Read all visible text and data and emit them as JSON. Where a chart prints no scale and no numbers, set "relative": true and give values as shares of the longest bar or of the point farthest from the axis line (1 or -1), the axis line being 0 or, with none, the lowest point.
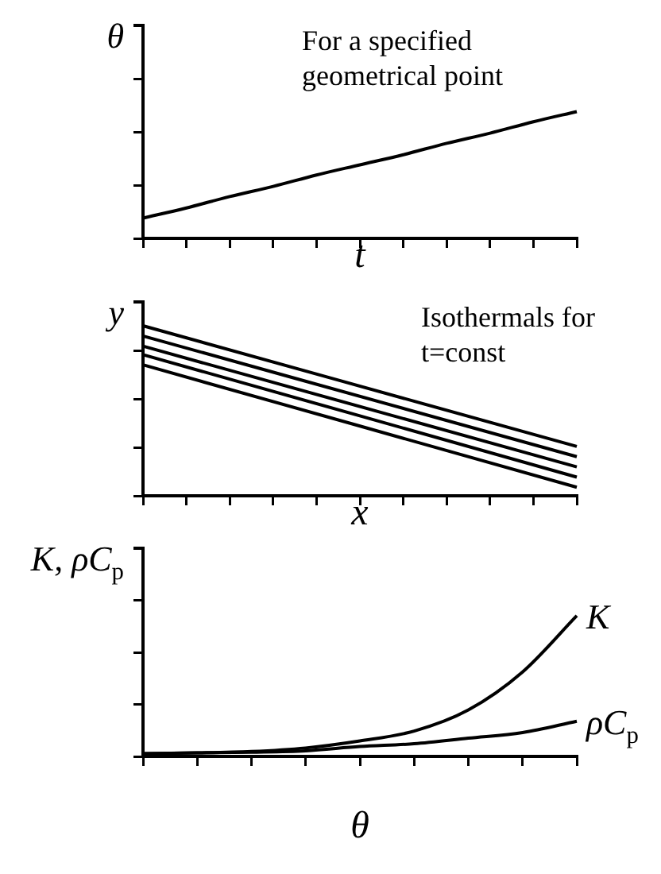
{
  "chart_data": [
    {
      "type": "line",
      "relative": true,
      "xlabel": "t",
      "ylabel": "θ",
      "annotations": [
        "For a specified geometrical point"
      ],
      "categories": [
        null,
        null,
        null,
        null,
        null,
        null,
        null,
        null,
        null,
        null,
        null
      ],
      "series": [
        {
          "color": "#000000",
          "values": [
            0.16,
            0.24,
            0.33,
            0.41,
            0.5,
            0.58,
            0.66,
            0.75,
            0.83,
            0.92,
            1.0
          ]
        }
      ],
      "marker": "none",
      "legend": false,
      "grid": false,
      "tick_labels": false
    },
    {
      "type": "line",
      "relative": true,
      "xlabel": "x",
      "ylabel": "y",
      "annotations": [
        "Isothermals for t=const"
      ],
      "categories": [
        null,
        null,
        null,
        null,
        null,
        null,
        null,
        null,
        null,
        null,
        null
      ],
      "series": [
        {
          "color": "#000000",
          "values": [
            1.0,
            null,
            null,
            null,
            null,
            null,
            null,
            null,
            null,
            null,
            0.29
          ]
        },
        {
          "color": "#000000",
          "values": [
            0.94,
            null,
            null,
            null,
            null,
            null,
            null,
            null,
            null,
            null,
            0.23
          ]
        },
        {
          "color": "#000000",
          "values": [
            0.88,
            null,
            null,
            null,
            null,
            null,
            null,
            null,
            null,
            null,
            0.17
          ]
        },
        {
          "color": "#000000",
          "values": [
            0.83,
            null,
            null,
            null,
            null,
            null,
            null,
            null,
            null,
            null,
            0.11
          ]
        },
        {
          "color": "#000000",
          "values": [
            0.77,
            null,
            null,
            null,
            null,
            null,
            null,
            null,
            null,
            null,
            0.05
          ]
        }
      ],
      "marker": "none",
      "legend": false,
      "grid": false,
      "tick_labels": false
    },
    {
      "type": "line",
      "relative": true,
      "xlabel": "θ",
      "ylabel": "K, ρC$_{p}$",
      "categories": [
        null,
        null,
        null,
        null,
        null,
        null,
        null,
        null,
        null
      ],
      "series": [
        {
          "name": "K",
          "color": "#000000",
          "values": [
            0.02,
            0.025,
            0.035,
            0.06,
            0.11,
            0.18,
            0.33,
            0.6,
            1.0
          ]
        },
        {
          "name": "ρC$_{p}$",
          "color": "#000000",
          "values": [
            0.02,
            0.025,
            0.03,
            0.04,
            0.07,
            0.09,
            0.13,
            0.17,
            0.25
          ]
        }
      ],
      "marker": "none",
      "legend": false,
      "grid": false,
      "tick_labels": false
    }
  ]
}
